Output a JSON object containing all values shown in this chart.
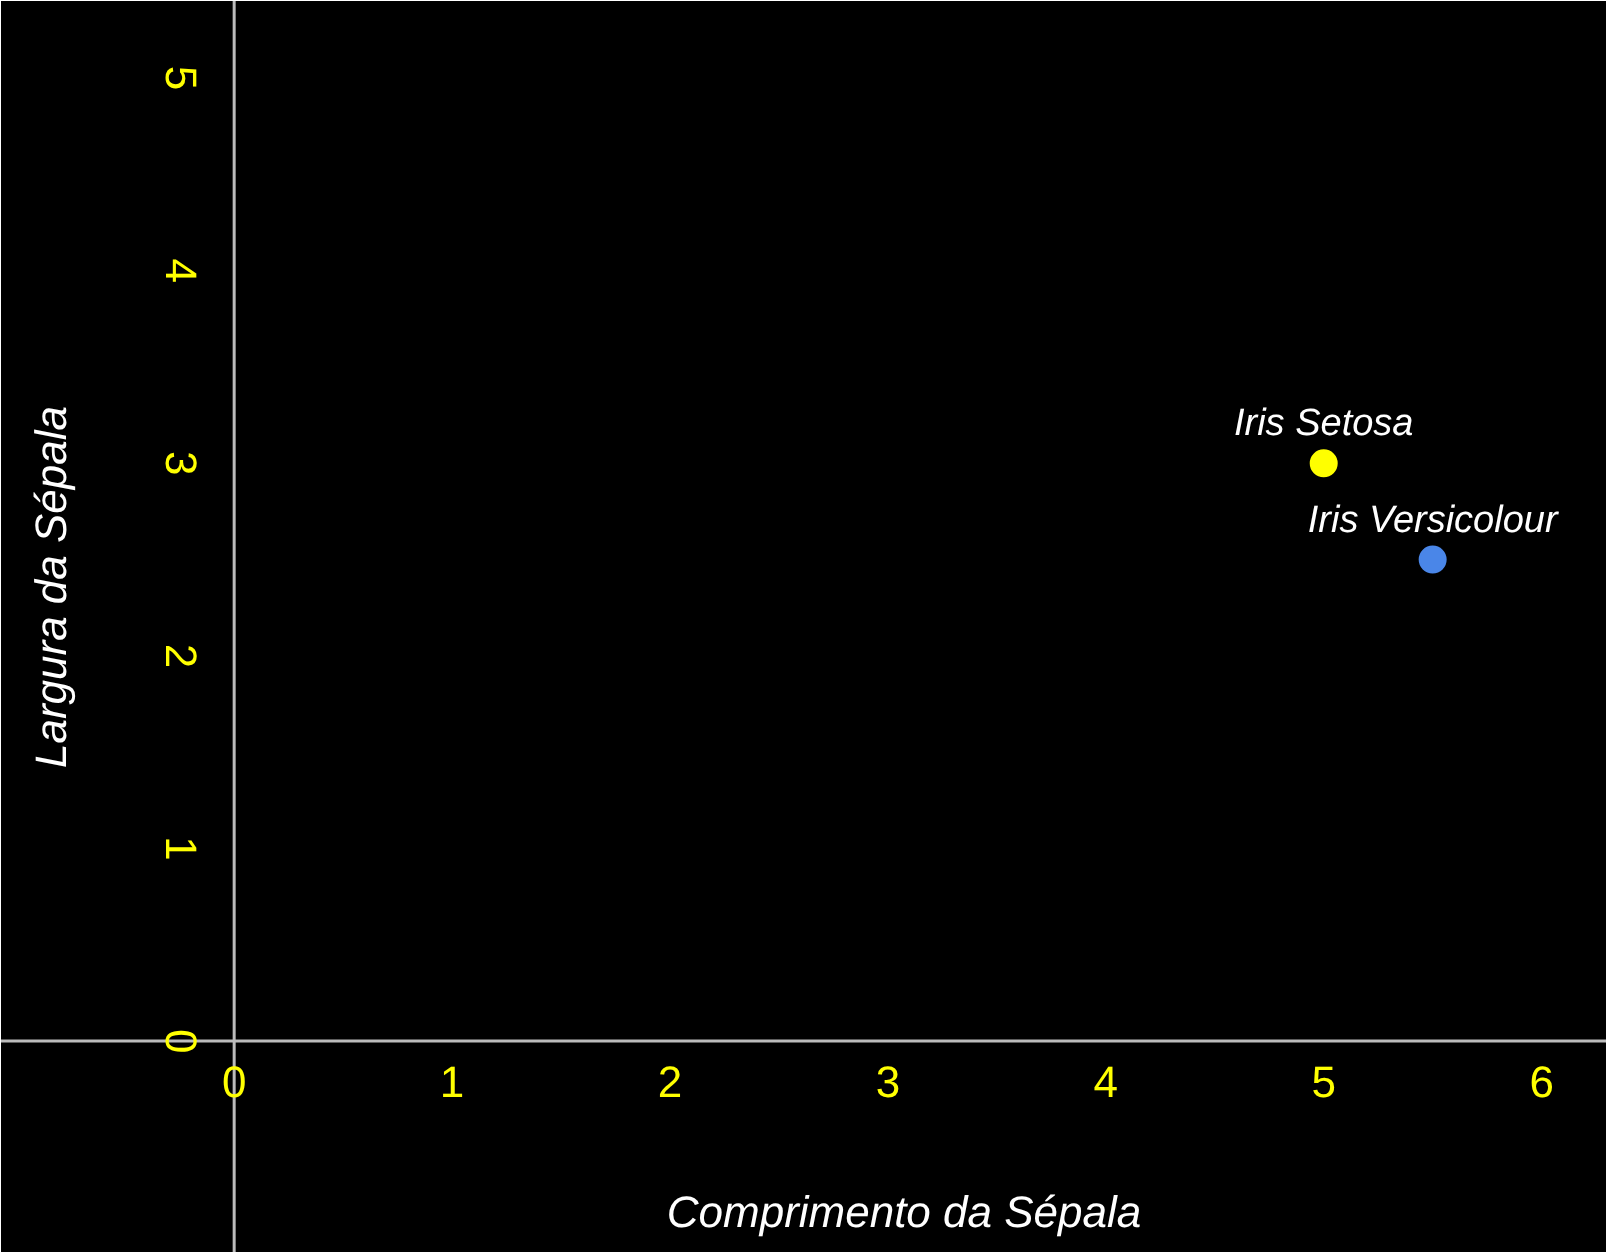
{
  "chart_data": {
    "type": "scatter",
    "xlabel": "Comprimento da Sépala",
    "ylabel": "Largura da Sépala",
    "xlim": [
      -1.07,
      6.3
    ],
    "ylim": [
      -1.1,
      5.4
    ],
    "xticks": [
      0,
      1,
      2,
      3,
      4,
      5,
      6
    ],
    "yticks": [
      0,
      1,
      2,
      3,
      4,
      5
    ],
    "grid": false,
    "marker": "circle",
    "series": [
      {
        "name": "Iris Setosa",
        "color": "#ffff00",
        "x": [
          5.0
        ],
        "values": [
          3.0
        ]
      },
      {
        "name": "Iris Versicolour",
        "color": "#4a86e8",
        "x": [
          5.5
        ],
        "values": [
          2.5
        ]
      }
    ]
  }
}
